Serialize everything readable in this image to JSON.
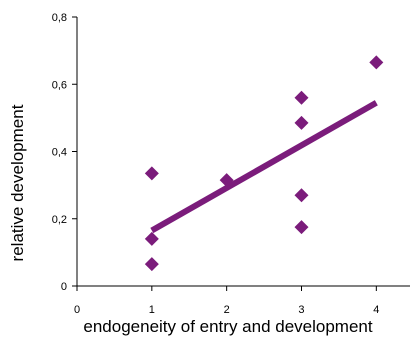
{
  "chart_data": {
    "type": "scatter",
    "title": "",
    "xlabel": "endogeneity of entry and development",
    "ylabel": "relative development",
    "xlim": [
      0,
      4.45
    ],
    "ylim": [
      0,
      0.8
    ],
    "x_ticks": [
      0,
      1,
      2,
      3,
      4
    ],
    "x_tick_labels": [
      "0",
      "1",
      "2",
      "3",
      "4"
    ],
    "y_ticks": [
      0,
      0.2,
      0.4,
      0.6,
      0.8
    ],
    "y_tick_labels": [
      "0",
      "0,2",
      "0,4",
      "0,6",
      "0,8"
    ],
    "grid": false,
    "legend": "none",
    "marker": "diamond",
    "color": "#7b1c7b",
    "series": [
      {
        "points": [
          {
            "x": 1,
            "y": 0.335
          },
          {
            "x": 1,
            "y": 0.14
          },
          {
            "x": 1,
            "y": 0.065
          },
          {
            "x": 2,
            "y": 0.315
          },
          {
            "x": 3,
            "y": 0.56
          },
          {
            "x": 3,
            "y": 0.485
          },
          {
            "x": 3,
            "y": 0.27
          },
          {
            "x": 3,
            "y": 0.175
          },
          {
            "x": 4,
            "y": 0.665
          }
        ]
      }
    ],
    "trendline": {
      "x": [
        1,
        4
      ],
      "y": [
        0.165,
        0.545
      ]
    }
  }
}
